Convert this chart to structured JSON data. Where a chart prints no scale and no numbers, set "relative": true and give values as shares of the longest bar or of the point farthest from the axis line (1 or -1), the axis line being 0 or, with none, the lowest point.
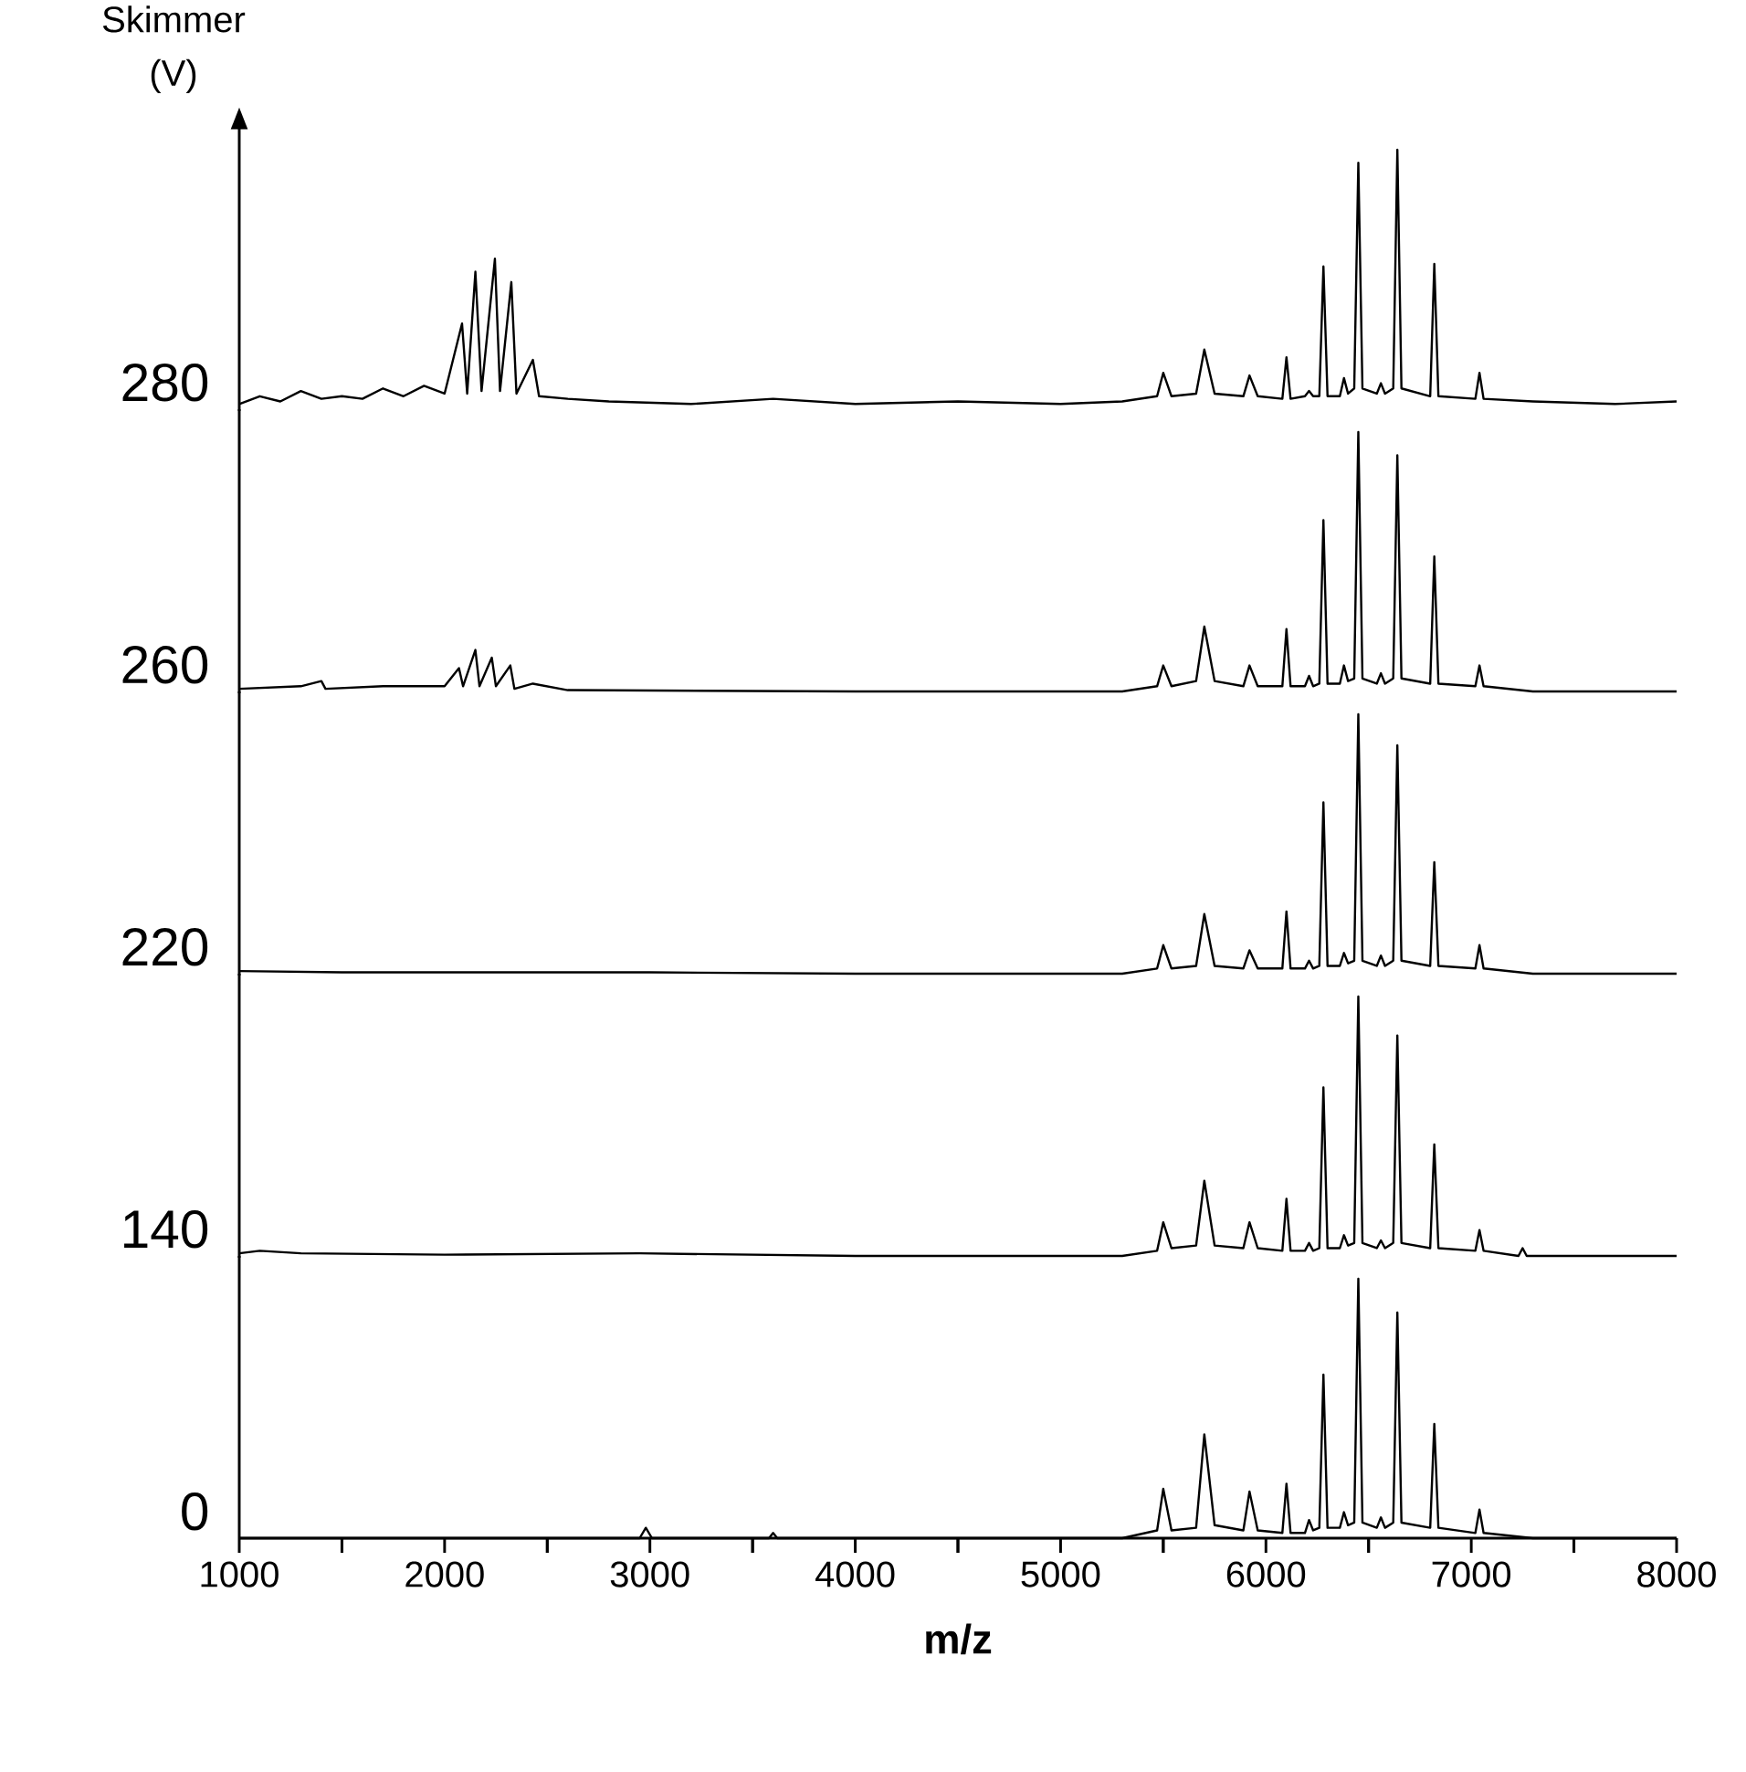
{
  "chart_data": [
    {
      "type": "line",
      "relative": true,
      "title": "Skimmer (V)",
      "ylabel": "280",
      "color": "#000000",
      "xlim": [
        1000,
        8000
      ],
      "tick_labels": false,
      "x": [
        1000,
        1100,
        1200,
        1300,
        1400,
        1500,
        1600,
        1700,
        1800,
        1900,
        2000,
        2085,
        2110,
        2150,
        2180,
        2245,
        2270,
        2325,
        2350,
        2430,
        2460,
        2600,
        2800,
        3200,
        3600,
        4000,
        4500,
        5000,
        5300,
        5470,
        5500,
        5540,
        5660,
        5700,
        5750,
        5890,
        5920,
        5960,
        6080,
        6100,
        6120,
        6190,
        6210,
        6230,
        6260,
        6280,
        6300,
        6360,
        6380,
        6400,
        6430,
        6450,
        6470,
        6540,
        6560,
        6580,
        6620,
        6640,
        6660,
        6800,
        6820,
        6840,
        7020,
        7040,
        7060,
        7300,
        7700,
        8000
      ],
      "values": [
        0.02,
        0.05,
        0.03,
        0.07,
        0.04,
        0.05,
        0.04,
        0.08,
        0.05,
        0.09,
        0.06,
        0.33,
        0.06,
        0.53,
        0.07,
        0.58,
        0.07,
        0.49,
        0.06,
        0.19,
        0.05,
        0.04,
        0.03,
        0.02,
        0.04,
        0.02,
        0.03,
        0.02,
        0.03,
        0.05,
        0.14,
        0.05,
        0.06,
        0.23,
        0.06,
        0.05,
        0.13,
        0.05,
        0.04,
        0.2,
        0.04,
        0.05,
        0.07,
        0.05,
        0.05,
        0.55,
        0.05,
        0.05,
        0.12,
        0.06,
        0.08,
        0.95,
        0.08,
        0.06,
        0.1,
        0.06,
        0.08,
        1,
        0.08,
        0.05,
        0.56,
        0.05,
        0.04,
        0.14,
        0.04,
        0.03,
        0.02,
        0.03
      ]
    },
    {
      "type": "line",
      "relative": true,
      "ylabel": "260",
      "color": "#000000",
      "xlim": [
        1000,
        8000
      ],
      "tick_labels": false,
      "x": [
        1000,
        1300,
        1400,
        1420,
        1700,
        2000,
        2070,
        2090,
        2150,
        2170,
        2230,
        2250,
        2320,
        2340,
        2430,
        2600,
        4000,
        5300,
        5470,
        5500,
        5540,
        5660,
        5700,
        5750,
        5890,
        5920,
        5960,
        6080,
        6100,
        6120,
        6190,
        6210,
        6230,
        6260,
        6280,
        6300,
        6360,
        6380,
        6400,
        6430,
        6450,
        6470,
        6540,
        6560,
        6580,
        6620,
        6640,
        6660,
        6800,
        6820,
        6840,
        7020,
        7040,
        7060,
        7300,
        8000
      ],
      "values": [
        0.01,
        0.02,
        0.04,
        0.01,
        0.02,
        0.02,
        0.09,
        0.02,
        0.16,
        0.02,
        0.13,
        0.02,
        0.1,
        0.01,
        0.03,
        0.005,
        0,
        0,
        0.02,
        0.1,
        0.02,
        0.04,
        0.25,
        0.04,
        0.02,
        0.1,
        0.02,
        0.02,
        0.24,
        0.02,
        0.02,
        0.06,
        0.02,
        0.03,
        0.66,
        0.03,
        0.03,
        0.1,
        0.04,
        0.05,
        1,
        0.05,
        0.03,
        0.07,
        0.03,
        0.05,
        0.91,
        0.05,
        0.03,
        0.52,
        0.03,
        0.02,
        0.1,
        0.02,
        0,
        0
      ]
    },
    {
      "type": "line",
      "relative": true,
      "ylabel": "220",
      "color": "#000000",
      "xlim": [
        1000,
        8000
      ],
      "tick_labels": false,
      "x": [
        1000,
        1500,
        2000,
        3000,
        4000,
        5300,
        5470,
        5500,
        5540,
        5660,
        5700,
        5750,
        5890,
        5920,
        5960,
        6080,
        6100,
        6120,
        6190,
        6210,
        6230,
        6260,
        6280,
        6300,
        6360,
        6380,
        6400,
        6430,
        6450,
        6470,
        6540,
        6560,
        6580,
        6620,
        6640,
        6660,
        6800,
        6820,
        6840,
        7020,
        7040,
        7060,
        7300,
        8000
      ],
      "values": [
        0.01,
        0.005,
        0.005,
        0.005,
        0,
        0,
        0.02,
        0.11,
        0.02,
        0.03,
        0.23,
        0.03,
        0.02,
        0.09,
        0.02,
        0.02,
        0.24,
        0.02,
        0.02,
        0.05,
        0.02,
        0.03,
        0.66,
        0.03,
        0.03,
        0.08,
        0.04,
        0.05,
        1,
        0.05,
        0.03,
        0.07,
        0.03,
        0.05,
        0.88,
        0.05,
        0.03,
        0.43,
        0.03,
        0.02,
        0.11,
        0.02,
        0,
        0
      ]
    },
    {
      "type": "line",
      "relative": true,
      "ylabel": "140",
      "color": "#000000",
      "xlim": [
        1000,
        8000
      ],
      "tick_labels": false,
      "x": [
        1000,
        1100,
        1300,
        2000,
        2950,
        4000,
        5300,
        5470,
        5500,
        5540,
        5660,
        5700,
        5750,
        5890,
        5920,
        5960,
        6080,
        6100,
        6120,
        6190,
        6210,
        6230,
        6260,
        6280,
        6300,
        6360,
        6380,
        6400,
        6430,
        6450,
        6470,
        6540,
        6560,
        6580,
        6620,
        6640,
        6660,
        6800,
        6820,
        6840,
        7020,
        7040,
        7060,
        7230,
        7250,
        7270,
        8000
      ],
      "values": [
        0.01,
        0.02,
        0.01,
        0.005,
        0.01,
        0,
        0,
        0.02,
        0.13,
        0.03,
        0.04,
        0.29,
        0.04,
        0.03,
        0.13,
        0.03,
        0.02,
        0.22,
        0.02,
        0.02,
        0.05,
        0.02,
        0.03,
        0.65,
        0.03,
        0.03,
        0.08,
        0.04,
        0.05,
        1,
        0.05,
        0.03,
        0.06,
        0.03,
        0.05,
        0.85,
        0.05,
        0.03,
        0.43,
        0.03,
        0.02,
        0.1,
        0.02,
        0,
        0.03,
        0,
        0
      ]
    },
    {
      "type": "line",
      "relative": true,
      "ylabel": "0",
      "xlabel": "m/z",
      "color": "#000000",
      "xlim": [
        1000,
        8000
      ],
      "tick_labels": "x",
      "xticks": [
        1000,
        {
          "value": 1500,
          "label": null
        },
        2000,
        {
          "value": 2500,
          "label": null
        },
        3000,
        {
          "value": 3500,
          "label": null
        },
        4000,
        {
          "value": 4500,
          "label": null
        },
        5000,
        {
          "value": 5500,
          "label": null
        },
        6000,
        {
          "value": 6500,
          "label": null
        },
        7000,
        {
          "value": 7500,
          "label": null
        },
        8000
      ],
      "x": [
        1000,
        2000,
        2950,
        2980,
        3010,
        3580,
        3600,
        3620,
        4500,
        5300,
        5470,
        5500,
        5540,
        5660,
        5700,
        5750,
        5890,
        5920,
        5960,
        6080,
        6100,
        6120,
        6190,
        6210,
        6230,
        6260,
        6280,
        6300,
        6360,
        6380,
        6400,
        6430,
        6450,
        6470,
        6540,
        6560,
        6580,
        6620,
        6640,
        6660,
        6800,
        6820,
        6840,
        7020,
        7040,
        7060,
        7300,
        8000
      ],
      "values": [
        0,
        0,
        0,
        0.04,
        0,
        0,
        0.02,
        0,
        0,
        0,
        0.03,
        0.19,
        0.03,
        0.04,
        0.4,
        0.05,
        0.03,
        0.18,
        0.03,
        0.02,
        0.21,
        0.02,
        0.02,
        0.07,
        0.03,
        0.04,
        0.63,
        0.04,
        0.04,
        0.1,
        0.05,
        0.06,
        1,
        0.06,
        0.04,
        0.08,
        0.04,
        0.06,
        0.87,
        0.06,
        0.04,
        0.44,
        0.04,
        0.02,
        0.11,
        0.02,
        0,
        0
      ]
    }
  ]
}
